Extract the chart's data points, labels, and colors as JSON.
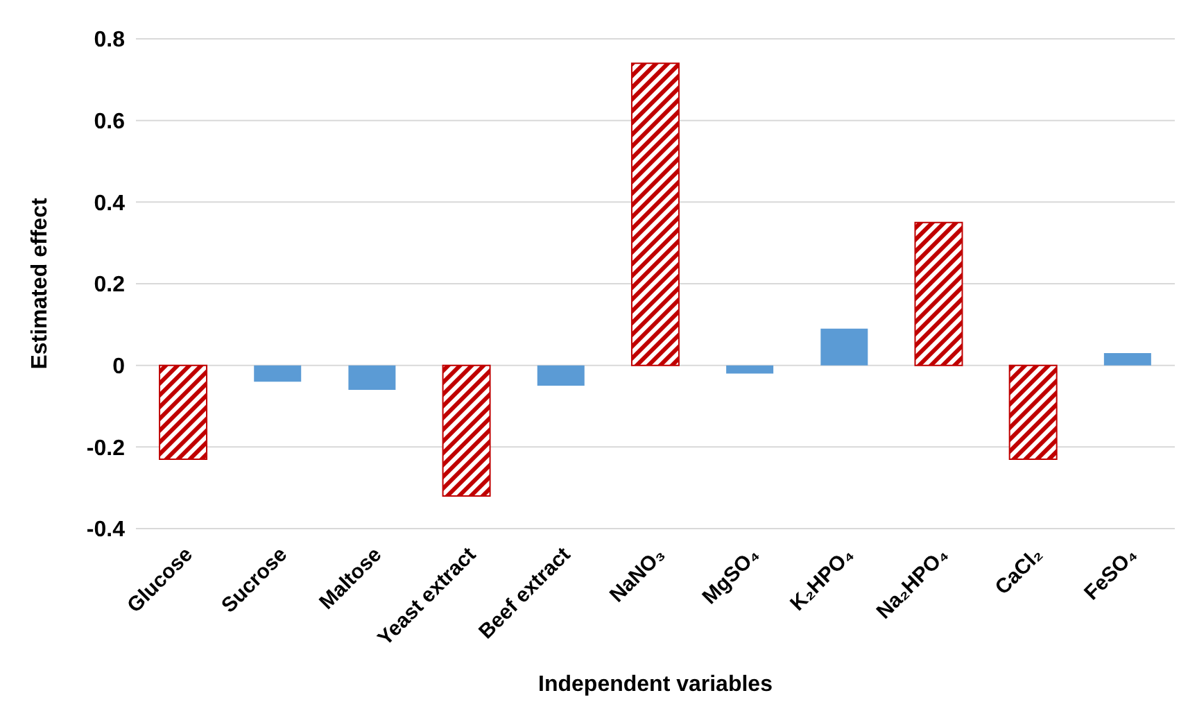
{
  "chart_data": {
    "type": "bar",
    "xlabel": "Independent variables",
    "ylabel": "Estimated effect",
    "categories": [
      "Glucose",
      "Sucrose",
      "Maltose",
      "Yeast extract",
      "Beef extract",
      "NaNO₃",
      "MgSO₄",
      "K₂HPO₄",
      "Na₂HPO₄",
      "CaCl₂",
      "FeSO₄"
    ],
    "values": [
      -0.23,
      -0.04,
      -0.06,
      -0.32,
      -0.05,
      0.74,
      -0.02,
      0.09,
      0.35,
      -0.23,
      0.03
    ],
    "color": "#5b9bd5",
    "colors": [
      "#c00000",
      "#5b9bd5",
      "#5b9bd5",
      "#c00000",
      "#5b9bd5",
      "#c00000",
      "#5b9bd5",
      "#5b9bd5",
      "#c00000",
      "#c00000",
      "#5b9bd5"
    ],
    "ylim": [
      -0.4,
      0.8
    ],
    "yticks": [
      -0.4,
      -0.2,
      0,
      0.2,
      0.4,
      0.6,
      0.8
    ],
    "grid": "y",
    "legend": false
  }
}
